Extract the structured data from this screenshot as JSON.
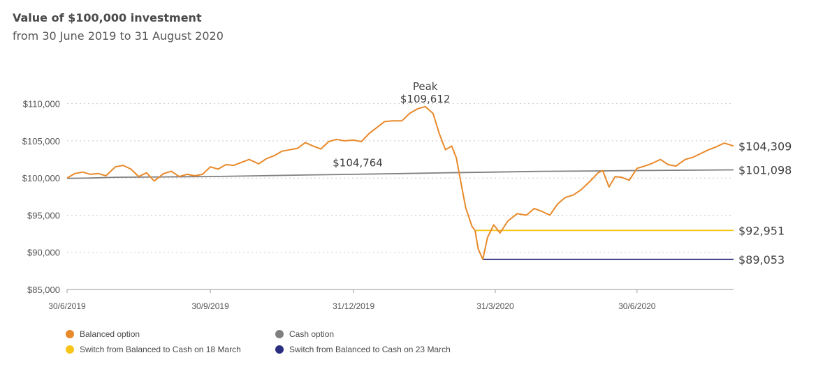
{
  "title": "Value of $100,000 investment",
  "subtitle": "from 30 June 2019 to 31 August 2020",
  "chart_data": {
    "type": "line",
    "xlabel": "",
    "ylabel": "",
    "ylim": [
      85000,
      111000
    ],
    "xlim": [
      "2019-06-30",
      "2020-08-31"
    ],
    "grid": "horizontal dotted",
    "legend_position": "bottom",
    "y_ticks": [
      "$85,000",
      "$90,000",
      "$95,000",
      "$100,000",
      "$105,000",
      "$110,000"
    ],
    "y_tick_values": [
      85000,
      90000,
      95000,
      100000,
      105000,
      110000
    ],
    "x_ticks": [
      "30/6/2019",
      "30/9/2019",
      "31/12/2019",
      "31/3/2020",
      "30/6/2020"
    ],
    "x_tick_values": [
      "2019-06-30",
      "2019-09-30",
      "2019-12-31",
      "2020-03-31",
      "2020-06-30"
    ],
    "annotations": {
      "peak_word": "Peak",
      "peak_value": "$109,612",
      "mid_value": "$104,764",
      "mid_value_date": "2019-11-30"
    },
    "series": [
      {
        "name": "Balanced option",
        "color": "#e8892a",
        "end_label": "$104,309",
        "points": [
          [
            "2019-06-30",
            100000
          ],
          [
            "2019-07-05",
            100600
          ],
          [
            "2019-07-10",
            100800
          ],
          [
            "2019-07-15",
            100500
          ],
          [
            "2019-07-20",
            100600
          ],
          [
            "2019-07-25",
            100300
          ],
          [
            "2019-07-31",
            101500
          ],
          [
            "2019-08-05",
            101700
          ],
          [
            "2019-08-10",
            101200
          ],
          [
            "2019-08-15",
            100200
          ],
          [
            "2019-08-20",
            100700
          ],
          [
            "2019-08-25",
            99600
          ],
          [
            "2019-08-31",
            100600
          ],
          [
            "2019-09-05",
            100900
          ],
          [
            "2019-09-10",
            100200
          ],
          [
            "2019-09-15",
            100500
          ],
          [
            "2019-09-20",
            100300
          ],
          [
            "2019-09-25",
            100500
          ],
          [
            "2019-09-30",
            101500
          ],
          [
            "2019-10-05",
            101200
          ],
          [
            "2019-10-10",
            101800
          ],
          [
            "2019-10-15",
            101700
          ],
          [
            "2019-10-20",
            102100
          ],
          [
            "2019-10-25",
            102500
          ],
          [
            "2019-10-31",
            101900
          ],
          [
            "2019-11-05",
            102600
          ],
          [
            "2019-11-10",
            103000
          ],
          [
            "2019-11-15",
            103600
          ],
          [
            "2019-11-20",
            103800
          ],
          [
            "2019-11-25",
            104000
          ],
          [
            "2019-11-30",
            104764
          ],
          [
            "2019-12-05",
            104300
          ],
          [
            "2019-12-10",
            103900
          ],
          [
            "2019-12-15",
            104900
          ],
          [
            "2019-12-20",
            105200
          ],
          [
            "2019-12-25",
            105000
          ],
          [
            "2019-12-31",
            105100
          ],
          [
            "2020-01-05",
            104900
          ],
          [
            "2020-01-10",
            106000
          ],
          [
            "2020-01-15",
            106800
          ],
          [
            "2020-01-20",
            107600
          ],
          [
            "2020-01-25",
            107700
          ],
          [
            "2020-01-31",
            107700
          ],
          [
            "2020-02-05",
            108700
          ],
          [
            "2020-02-10",
            109300
          ],
          [
            "2020-02-15",
            109612
          ],
          [
            "2020-02-20",
            108700
          ],
          [
            "2020-02-24",
            106000
          ],
          [
            "2020-02-28",
            103800
          ],
          [
            "2020-03-03",
            104300
          ],
          [
            "2020-03-06",
            102700
          ],
          [
            "2020-03-09",
            99300
          ],
          [
            "2020-03-12",
            96000
          ],
          [
            "2020-03-16",
            93500
          ],
          [
            "2020-03-18",
            92951
          ],
          [
            "2020-03-20",
            90500
          ],
          [
            "2020-03-23",
            89053
          ],
          [
            "2020-03-26",
            92000
          ],
          [
            "2020-03-30",
            93700
          ],
          [
            "2020-04-03",
            92600
          ],
          [
            "2020-04-08",
            94200
          ],
          [
            "2020-04-14",
            95200
          ],
          [
            "2020-04-20",
            95000
          ],
          [
            "2020-04-25",
            95900
          ],
          [
            "2020-04-30",
            95500
          ],
          [
            "2020-05-05",
            95000
          ],
          [
            "2020-05-10",
            96500
          ],
          [
            "2020-05-15",
            97400
          ],
          [
            "2020-05-20",
            97700
          ],
          [
            "2020-05-25",
            98400
          ],
          [
            "2020-05-31",
            99600
          ],
          [
            "2020-06-05",
            100700
          ],
          [
            "2020-06-08",
            101000
          ],
          [
            "2020-06-12",
            98800
          ],
          [
            "2020-06-16",
            100200
          ],
          [
            "2020-06-20",
            100100
          ],
          [
            "2020-06-25",
            99700
          ],
          [
            "2020-06-30",
            101300
          ],
          [
            "2020-07-05",
            101600
          ],
          [
            "2020-07-10",
            102000
          ],
          [
            "2020-07-15",
            102500
          ],
          [
            "2020-07-20",
            101800
          ],
          [
            "2020-07-25",
            101600
          ],
          [
            "2020-07-31",
            102500
          ],
          [
            "2020-08-05",
            102800
          ],
          [
            "2020-08-10",
            103300
          ],
          [
            "2020-08-15",
            103800
          ],
          [
            "2020-08-20",
            104200
          ],
          [
            "2020-08-25",
            104700
          ],
          [
            "2020-08-31",
            104309
          ]
        ]
      },
      {
        "name": "Cash option",
        "color": "#7f7f7f",
        "end_label": "$101,098",
        "points": [
          [
            "2019-06-30",
            99950
          ],
          [
            "2019-07-15",
            100000
          ],
          [
            "2019-07-31",
            100100
          ],
          [
            "2019-08-31",
            100150
          ],
          [
            "2019-09-30",
            100200
          ],
          [
            "2019-10-31",
            100300
          ],
          [
            "2019-11-30",
            100400
          ],
          [
            "2019-12-31",
            100500
          ],
          [
            "2020-01-31",
            100600
          ],
          [
            "2020-02-29",
            100700
          ],
          [
            "2020-03-31",
            100800
          ],
          [
            "2020-04-30",
            100900
          ],
          [
            "2020-05-31",
            100950
          ],
          [
            "2020-06-30",
            101000
          ],
          [
            "2020-07-31",
            101050
          ],
          [
            "2020-08-31",
            101098
          ]
        ]
      },
      {
        "name": "Switch from Balanced to Cash on 18 March",
        "color": "#f5c518",
        "end_label": "$92,951",
        "points": [
          [
            "2020-03-18",
            92951
          ],
          [
            "2020-03-31",
            92951
          ],
          [
            "2020-04-30",
            92951
          ],
          [
            "2020-05-31",
            92951
          ],
          [
            "2020-06-30",
            92951
          ],
          [
            "2020-07-31",
            92951
          ],
          [
            "2020-08-31",
            92951
          ]
        ]
      },
      {
        "name": "Switch from Balanced to Cash on 23 March",
        "color": "#2b2e7e",
        "end_label": "$89,053",
        "points": [
          [
            "2020-03-23",
            89053
          ],
          [
            "2020-03-31",
            89053
          ],
          [
            "2020-04-30",
            89053
          ],
          [
            "2020-05-31",
            89053
          ],
          [
            "2020-06-30",
            89053
          ],
          [
            "2020-07-31",
            89053
          ],
          [
            "2020-08-31",
            89053
          ]
        ]
      }
    ]
  }
}
